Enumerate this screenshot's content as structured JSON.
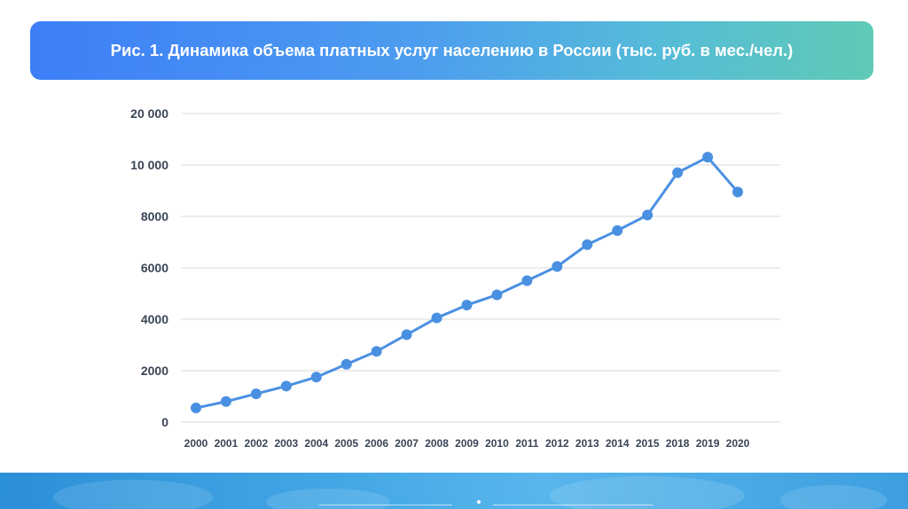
{
  "header": {
    "title": "Рис. 1. Динамика объема платных услуг населению в России (тыс. руб. в мес./чел.)"
  },
  "colors": {
    "banner_start": "#3d7ef7",
    "banner_end": "#5fcab4",
    "series": "#4a90e2",
    "axis_text": "#3a4456",
    "grid": "#d9d9d9"
  },
  "chart_data": {
    "type": "line",
    "title": "Рис. 1. Динамика объема платных услуг населению в России (тыс. руб. в мес./чел.)",
    "xlabel": "",
    "ylabel": "",
    "categories": [
      "2000",
      "2001",
      "2002",
      "2003",
      "2004",
      "2005",
      "2006",
      "2007",
      "2008",
      "2009",
      "2010",
      "2011",
      "2012",
      "2013",
      "2014",
      "2015",
      "2018",
      "2019",
      "2020"
    ],
    "y_ticks": [
      {
        "value": 0,
        "label": "0"
      },
      {
        "value": 2000,
        "label": "2000"
      },
      {
        "value": 4000,
        "label": "4000"
      },
      {
        "value": 6000,
        "label": "6000"
      },
      {
        "value": 8000,
        "label": "8000"
      },
      {
        "value": 10000,
        "label": "10 000"
      },
      {
        "value": 20000,
        "label": "20 000"
      }
    ],
    "y_scale_note_levels": [
      0,
      2000,
      4000,
      6000,
      8000,
      10000,
      12000
    ],
    "series": [
      {
        "values": [
          550,
          800,
          1100,
          1400,
          1750,
          2250,
          2750,
          3400,
          4050,
          4550,
          4950,
          5500,
          6050,
          6900,
          7450,
          8050,
          9700,
          10300,
          8950
        ]
      }
    ],
    "grid": true,
    "legend": "none"
  }
}
